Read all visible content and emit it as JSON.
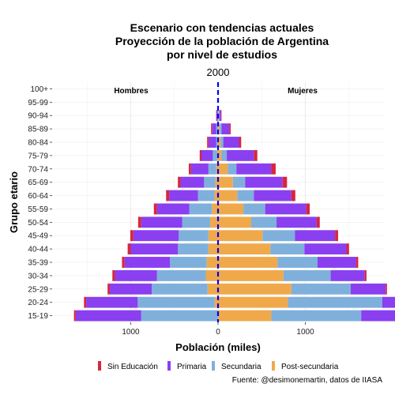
{
  "chart_data": {
    "type": "bar",
    "orientation": "horizontal",
    "title_lines": [
      "Escenario con tendencias actuales",
      "Proyección de la población de  Argentina",
      "por nivel de estudios"
    ],
    "subtitle": "2000",
    "xlabel": "Población (miles)",
    "ylabel": "Grupo etario",
    "caption": "Fuente: @desimonemartin, datos de IIASA",
    "xlim": [
      -1900,
      1900
    ],
    "x_ticks": [
      {
        "value": -1000,
        "label": "1000"
      },
      {
        "value": 0,
        "label": "0"
      },
      {
        "value": 1000,
        "label": "1000"
      }
    ],
    "grid": true,
    "legend_position": "bottom",
    "side_labels": {
      "left": "Hombres",
      "right": "Mujeres"
    },
    "colors": {
      "Sin Educación": "#D7263D",
      "Primaria": "#8A3FF0",
      "Secundaria": "#7FB0DC",
      "Post-secundaria": "#F0A94A",
      "zero_line": "#0000EE"
    },
    "levels": [
      "Sin Educación",
      "Primaria",
      "Secundaria",
      "Post-secundaria"
    ],
    "categories": [
      "100+",
      "95-99",
      "90-94",
      "85-89",
      "80-84",
      "75-79",
      "70-74",
      "65-69",
      "60-64",
      "55-59",
      "50-54",
      "45-49",
      "40-44",
      "35-39",
      "30-34",
      "25-29",
      "20-24",
      "15-19"
    ],
    "series": [
      {
        "name": "Sin Educación",
        "male": [
          0,
          0,
          3,
          10,
          15,
          20,
          25,
          30,
          35,
          35,
          35,
          35,
          35,
          30,
          30,
          25,
          25,
          20
        ],
        "female": [
          0,
          0,
          5,
          15,
          25,
          40,
          50,
          50,
          45,
          40,
          35,
          35,
          30,
          25,
          20,
          15,
          15,
          10
        ]
      },
      {
        "name": "Primaria",
        "male": [
          0,
          0,
          15,
          50,
          90,
          130,
          200,
          270,
          330,
          370,
          470,
          520,
          540,
          520,
          480,
          480,
          590,
          750
        ]
      },
      {
        "name": "Secundaria",
        "male": [
          0,
          0,
          5,
          20,
          20,
          50,
          90,
          130,
          190,
          260,
          320,
          340,
          350,
          420,
          560,
          640,
          880,
          880
        ]
      },
      {
        "name": "Post-secundaria",
        "male": [
          0,
          0,
          0,
          0,
          0,
          10,
          20,
          30,
          40,
          70,
          90,
          110,
          110,
          130,
          140,
          120,
          40,
          0
        ]
      }
    ],
    "female_series": [
      {
        "name": "Sin Educación",
        "values": [
          0,
          0,
          5,
          15,
          25,
          40,
          50,
          50,
          45,
          40,
          35,
          35,
          30,
          25,
          20,
          15,
          15,
          10
        ]
      },
      {
        "name": "Primaria",
        "values": [
          0,
          0,
          20,
          90,
          180,
          310,
          400,
          430,
          430,
          470,
          460,
          460,
          480,
          440,
          390,
          400,
          500,
          580
        ]
      },
      {
        "name": "Secundaria",
        "values": [
          0,
          0,
          5,
          20,
          30,
          60,
          100,
          140,
          190,
          250,
          290,
          370,
          390,
          460,
          540,
          680,
          1080,
          1030
        ]
      },
      {
        "name": "Post-secundaria",
        "values": [
          0,
          0,
          10,
          20,
          30,
          40,
          110,
          170,
          220,
          290,
          380,
          510,
          600,
          680,
          750,
          840,
          800,
          610
        ]
      }
    ]
  }
}
